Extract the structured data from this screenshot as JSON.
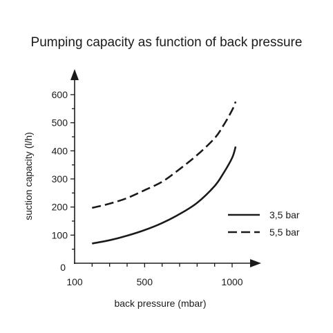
{
  "chart_data": {
    "type": "line",
    "title": "Pumping capacity as function of back pressure",
    "xlabel": "back pressure (mbar)",
    "ylabel": "suction capacity (l/h)",
    "xlim": [
      100,
      1100
    ],
    "ylim": [
      0,
      630
    ],
    "x_ticks": [
      100,
      500,
      1000
    ],
    "x_minor_ticks": [
      200,
      300,
      400,
      600,
      700,
      800,
      900
    ],
    "y_ticks": [
      0,
      100,
      200,
      300,
      400,
      500,
      600
    ],
    "y_minor_ticks": [
      50,
      150,
      250,
      350,
      450,
      550
    ],
    "grid": false,
    "legend": "right",
    "series": [
      {
        "name": "3,5 bar",
        "style": "solid",
        "color": "#1a1a1a",
        "x": [
          200,
          300,
          400,
          500,
          600,
          700,
          800,
          900,
          950,
          1000,
          1020
        ],
        "y": [
          70,
          82,
          98,
          118,
          143,
          175,
          215,
          275,
          320,
          375,
          415
        ]
      },
      {
        "name": "5,5 bar",
        "style": "dashed",
        "color": "#1a1a1a",
        "x": [
          200,
          300,
          400,
          500,
          600,
          700,
          800,
          900,
          950,
          1000,
          1020
        ],
        "y": [
          197,
          212,
          232,
          260,
          290,
          335,
          385,
          445,
          490,
          545,
          575
        ]
      }
    ]
  }
}
